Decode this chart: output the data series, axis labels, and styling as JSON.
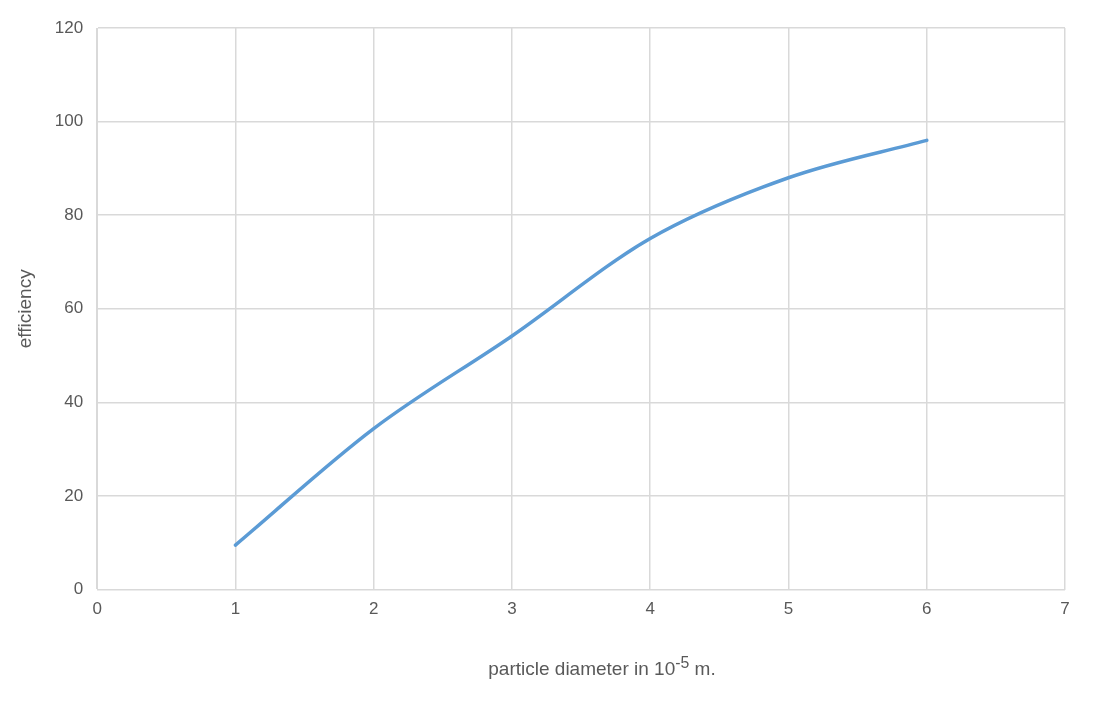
{
  "chart_data": {
    "type": "line",
    "xlabel": "particle diameter in 10$^{-5}$ m.",
    "ylabel": "efficiency",
    "x": [
      1,
      2,
      3,
      4,
      5,
      6
    ],
    "series": [
      {
        "color": "#5b9bd5",
        "values": [
          9.5,
          34.4,
          54.2,
          75,
          88,
          96
        ]
      }
    ],
    "xlim": [
      0,
      7
    ],
    "xticks": [
      0,
      1,
      2,
      3,
      4,
      5,
      6,
      7
    ],
    "ylim": [
      0,
      120
    ],
    "yticks": [
      0,
      20,
      40,
      60,
      80,
      100,
      120
    ],
    "grid": true,
    "legend": false,
    "marker": "none",
    "line_style": "solid"
  }
}
